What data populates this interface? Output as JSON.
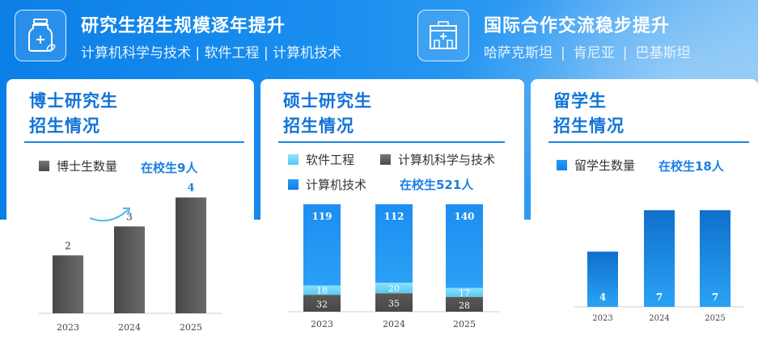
{
  "header_left": {
    "title": "研究生招生规模逐年提升",
    "subtitle": "计算机科学与技术 | 软件工程 | 计算机技术",
    "icon": "medicine-bottle-icon"
  },
  "header_right": {
    "title": "国际合作交流稳步提升",
    "subtitle_items": [
      "哈萨克斯坦",
      "肯尼亚",
      "巴基斯坦"
    ],
    "separator": "|",
    "icon": "hospital-building-icon"
  },
  "colors": {
    "accent": "#1173d8",
    "gray_bar": "#5f5d5c",
    "blue_bar": "#1c8ef0",
    "light_blue": "#6fd3f7",
    "dark_gray": "#5a5857"
  },
  "chart_data": [
    {
      "type": "bar",
      "title_line1": "博士研究生",
      "title_line2": "招生情况",
      "legend": [
        "博士生数量"
      ],
      "in_school": "在校生9人",
      "categories": [
        "2023",
        "2024",
        "2025"
      ],
      "values": [
        2,
        3,
        4
      ],
      "ylim": [
        0,
        4.6
      ]
    },
    {
      "type": "bar",
      "stacked": true,
      "title_line1": "硕士研究生",
      "title_line2": "招生情况",
      "in_school": "在校生521人",
      "categories": [
        "2023",
        "2024",
        "2025"
      ],
      "series": [
        {
          "name": "计算机科学与技术",
          "values": [
            32,
            35,
            28
          ]
        },
        {
          "name": "软件工程",
          "values": [
            18,
            20,
            17
          ]
        },
        {
          "name": "计算机技术",
          "values": [
            119,
            112,
            140
          ]
        }
      ]
    },
    {
      "type": "bar",
      "title_line1": "留学生",
      "title_line2": "招生情况",
      "legend": [
        "留学生数量"
      ],
      "in_school": "在校生18人",
      "categories": [
        "2023",
        "2024",
        "2025"
      ],
      "values": [
        4,
        7,
        7
      ],
      "ylim": [
        0,
        7.6
      ]
    }
  ]
}
